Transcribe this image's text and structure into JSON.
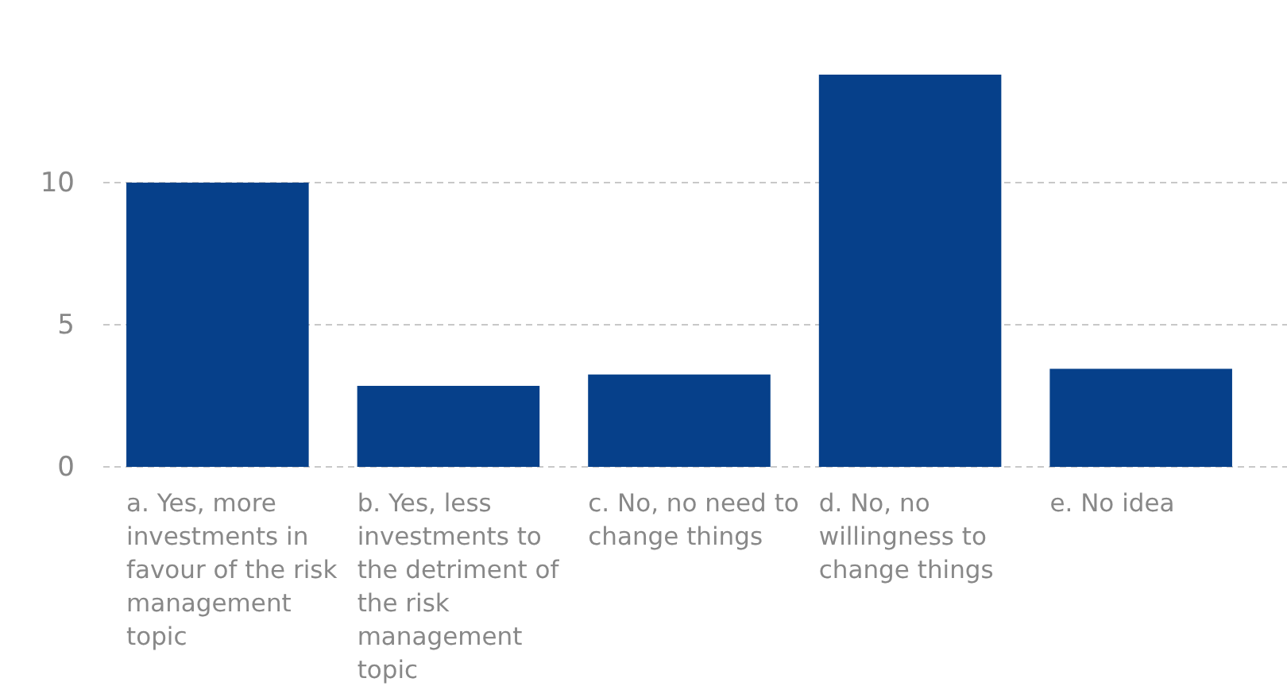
{
  "chart_data": {
    "type": "bar",
    "categories": [
      "a. Yes, more investments in favour of the risk management topic",
      "b. Yes, less investments to the detriment of the risk management topic",
      "c. No, no need to change things",
      "d. No, no willingness to change things",
      "e. No idea"
    ],
    "values": [
      10,
      2.85,
      3.25,
      13.8,
      3.45
    ],
    "color": "#06408a",
    "ylim": [
      0,
      13.8
    ],
    "yticks": [
      0,
      5,
      10
    ],
    "grid": "y"
  }
}
